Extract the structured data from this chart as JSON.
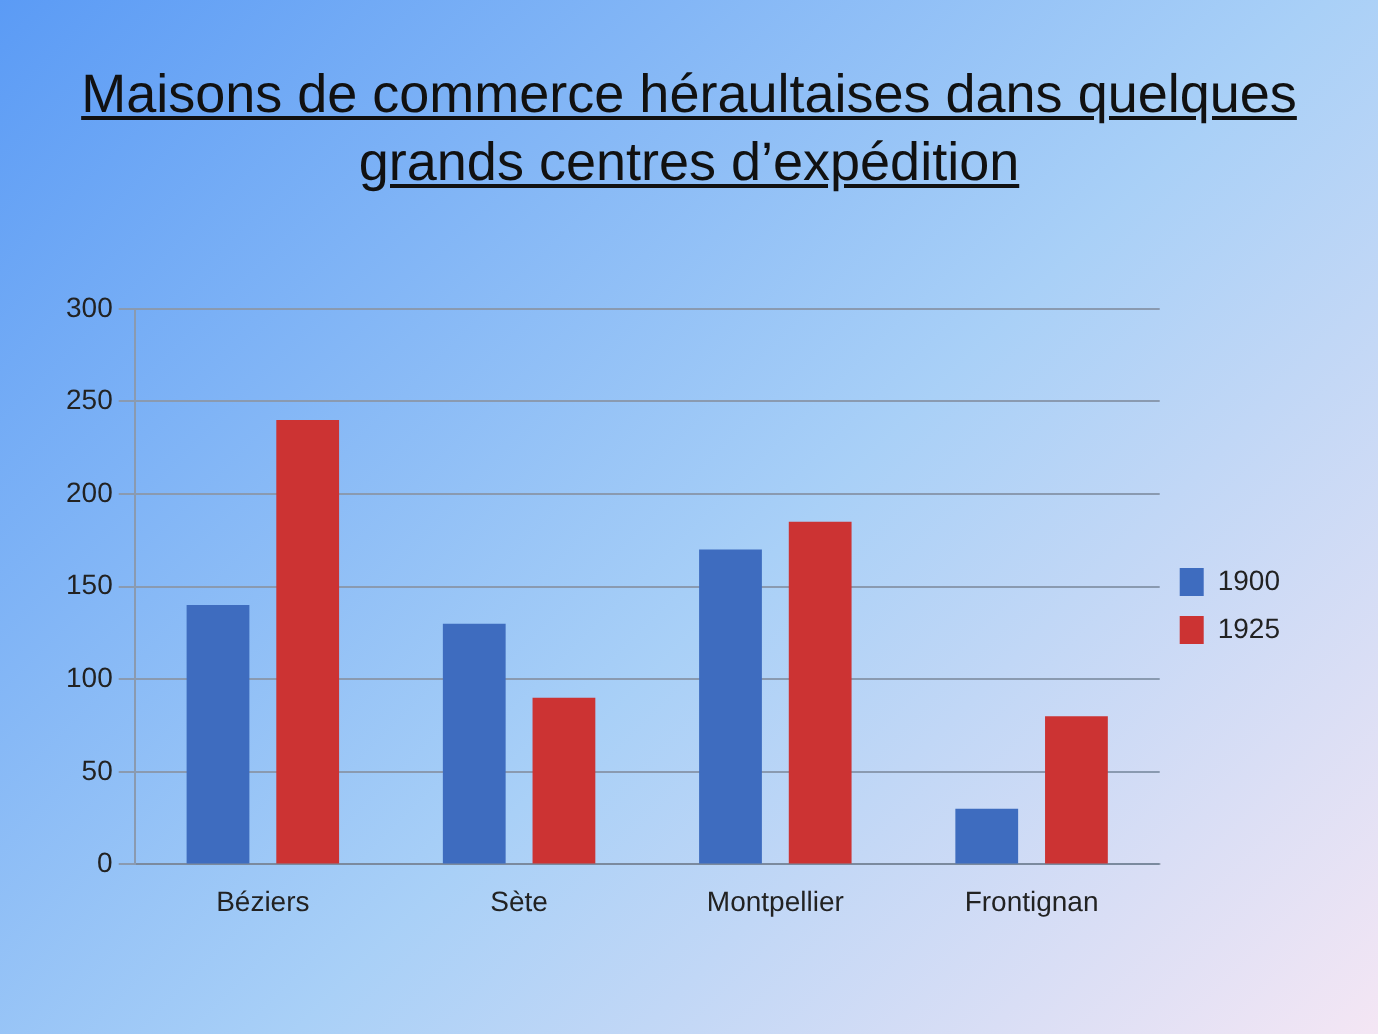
{
  "chart_data": {
    "type": "bar",
    "title": "Maisons de commerce héraultaises dans quelques grands centres d’expédition",
    "categories": [
      "Béziers",
      "Sète",
      "Montpellier",
      "Frontignan"
    ],
    "series": [
      {
        "name": "1900",
        "color": "#3e6cbf",
        "values": [
          140,
          130,
          170,
          30
        ]
      },
      {
        "name": "1925",
        "color": "#cc3333",
        "values": [
          240,
          90,
          185,
          80
        ]
      }
    ],
    "ylim": [
      0,
      300
    ],
    "yticks": [
      0,
      50,
      100,
      150,
      200,
      250,
      300
    ],
    "grid": "y",
    "legend": "right"
  }
}
